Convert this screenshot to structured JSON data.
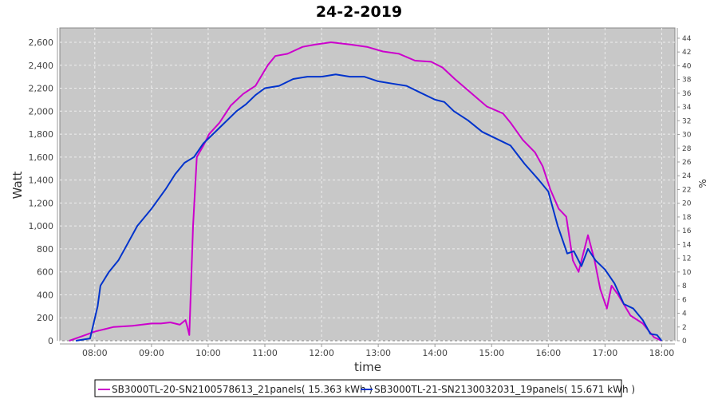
{
  "chart_data": {
    "type": "line",
    "title": "24-2-2019",
    "xlabel": "time",
    "ylabel": "Watt",
    "y2label": "%",
    "xlim": [
      "07:23",
      "18:14"
    ],
    "ylim": [
      0,
      2725
    ],
    "y2lim": [
      0,
      45.5
    ],
    "grid": true,
    "legend_position": "bottom",
    "x_ticks": [
      "08:00",
      "09:00",
      "10:00",
      "11:00",
      "12:00",
      "13:00",
      "14:00",
      "15:00",
      "16:00",
      "17:00",
      "18:00"
    ],
    "y_ticks": [
      0,
      200,
      400,
      600,
      800,
      1000,
      1200,
      1400,
      1600,
      1800,
      2000,
      2200,
      2400,
      2600
    ],
    "y_tick_labels": [
      "0",
      "200",
      "400",
      "600",
      "800",
      "1,000",
      "1,200",
      "1,400",
      "1,600",
      "1,800",
      "2,000",
      "2,200",
      "2,400",
      "2,600"
    ],
    "y2_ticks": [
      0,
      2,
      4,
      6,
      8,
      10,
      12,
      14,
      16,
      18,
      20,
      22,
      24,
      26,
      28,
      30,
      32,
      34,
      36,
      38,
      40,
      42,
      44
    ],
    "series": [
      {
        "name": "SB3000TL-20-SN2100578613_21panels( 15.363 kWh )",
        "color": "#cc00cc",
        "x": [
          "07:33",
          "07:40",
          "07:50",
          "08:00",
          "08:10",
          "08:20",
          "08:40",
          "09:00",
          "09:10",
          "09:20",
          "09:30",
          "09:36",
          "09:38",
          "09:40",
          "09:44",
          "09:48",
          "09:55",
          "10:01",
          "10:12",
          "10:24",
          "10:37",
          "10:50",
          "11:03",
          "11:11",
          "11:24",
          "11:40",
          "11:53",
          "12:10",
          "12:31",
          "12:48",
          "13:05",
          "13:22",
          "13:39",
          "13:56",
          "14:08",
          "14:21",
          "14:38",
          "14:55",
          "15:12",
          "15:20",
          "15:33",
          "15:46",
          "15:54",
          "16:02",
          "16:11",
          "16:19",
          "16:26",
          "16:32",
          "16:42",
          "16:49",
          "16:55",
          "17:02",
          "17:07",
          "17:14",
          "17:27",
          "17:40",
          "17:52",
          "18:00"
        ],
        "values": [
          0,
          20,
          50,
          80,
          100,
          120,
          130,
          150,
          150,
          160,
          140,
          180,
          120,
          50,
          1000,
          1600,
          1700,
          1800,
          1900,
          2050,
          2150,
          2220,
          2400,
          2480,
          2500,
          2560,
          2580,
          2600,
          2580,
          2560,
          2520,
          2500,
          2440,
          2430,
          2380,
          2280,
          2160,
          2040,
          1980,
          1900,
          1750,
          1640,
          1520,
          1320,
          1150,
          1080,
          700,
          600,
          920,
          700,
          450,
          280,
          480,
          400,
          220,
          150,
          30,
          0
        ]
      },
      {
        "name": "SB3000TL-21-SN2130032031_19panels( 15.671 kWh )",
        "color": "#0033cc",
        "x": [
          "07:40",
          "07:55",
          "08:03",
          "08:06",
          "08:15",
          "08:25",
          "08:35",
          "08:45",
          "09:00",
          "09:15",
          "09:25",
          "09:35",
          "09:45",
          "09:55",
          "10:05",
          "10:15",
          "10:30",
          "10:40",
          "10:50",
          "11:00",
          "11:15",
          "11:30",
          "11:45",
          "12:00",
          "12:15",
          "12:30",
          "12:45",
          "13:00",
          "13:15",
          "13:30",
          "13:45",
          "14:00",
          "14:10",
          "14:20",
          "14:35",
          "14:50",
          "15:05",
          "15:20",
          "15:35",
          "15:50",
          "16:00",
          "16:10",
          "16:20",
          "16:27",
          "16:35",
          "16:42",
          "16:50",
          "17:00",
          "17:10",
          "17:20",
          "17:30",
          "17:40",
          "17:48",
          "17:55",
          "18:00"
        ],
        "values": [
          0,
          20,
          300,
          480,
          600,
          700,
          850,
          1000,
          1150,
          1320,
          1450,
          1550,
          1600,
          1720,
          1800,
          1880,
          2000,
          2060,
          2140,
          2200,
          2220,
          2280,
          2300,
          2300,
          2320,
          2300,
          2300,
          2260,
          2240,
          2220,
          2160,
          2100,
          2080,
          2000,
          1920,
          1820,
          1760,
          1700,
          1540,
          1400,
          1300,
          1000,
          760,
          780,
          650,
          800,
          700,
          620,
          500,
          320,
          280,
          180,
          60,
          50,
          0
        ]
      }
    ]
  }
}
